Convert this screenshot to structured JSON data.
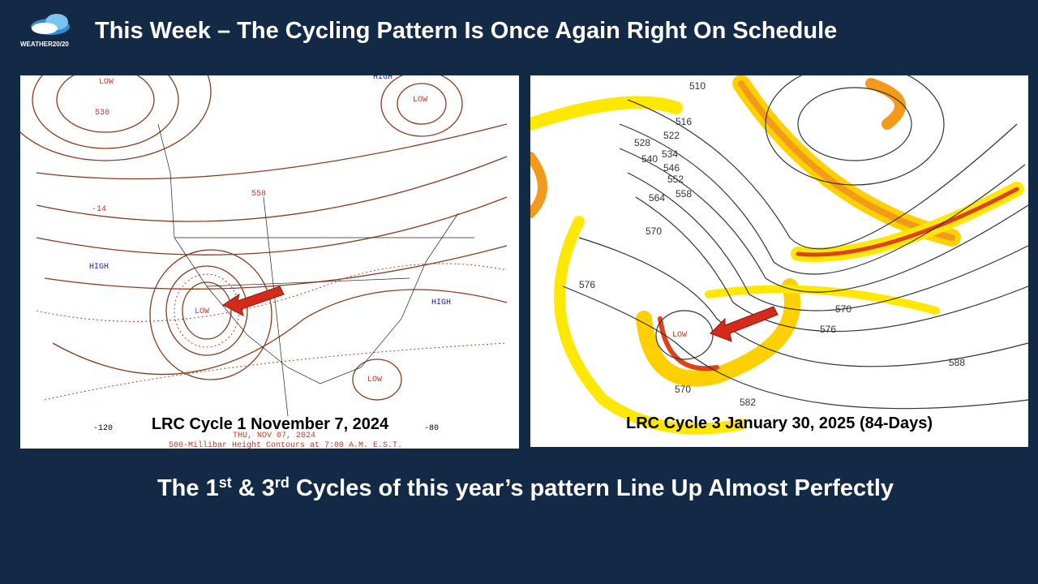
{
  "header": {
    "logo": "WEATHER20/20",
    "title": "This Week – The Cycling Pattern Is Once Again Right On Schedule"
  },
  "left_map": {
    "caption": "LRC Cycle 1 November 7, 2024",
    "stamp": "THU, NOV 07, 2024",
    "footer": "500-Millibar Height Contours at 7:00 A.M. E.S.T.",
    "labels": [
      "HIGH",
      "HIGH",
      "HIGH",
      "LOW",
      "LOW",
      "LOW",
      "LOW",
      "530",
      "558",
      "-14",
      "-120",
      "-80"
    ]
  },
  "right_map": {
    "caption": "LRC Cycle 3 January 30, 2025 (84-Days)",
    "labels": [
      "510",
      "516",
      "522",
      "528",
      "534",
      "540",
      "546",
      "552",
      "558",
      "564",
      "570",
      "576",
      "570",
      "576",
      "588",
      "582",
      "570",
      "LOW"
    ]
  },
  "footer": {
    "parts": [
      "The 1",
      "st",
      " & 3",
      "rd",
      " Cycles of this year’s pattern Line Up Almost Perfectly"
    ]
  }
}
